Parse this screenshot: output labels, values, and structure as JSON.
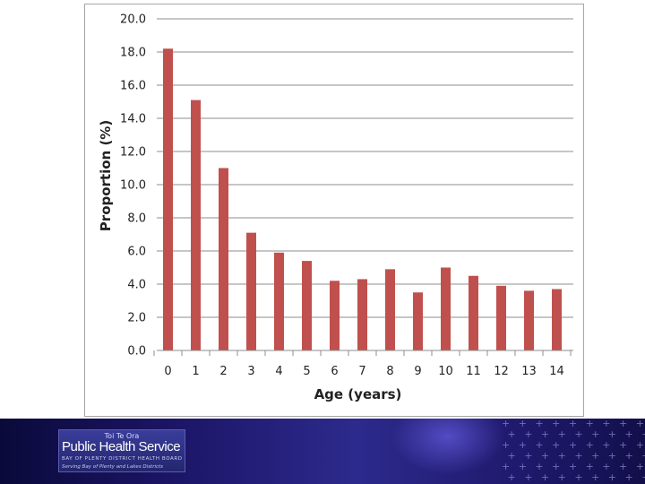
{
  "chart_data": {
    "type": "bar",
    "title": "",
    "xlabel": "Age (years)",
    "ylabel": "Proportion (%)",
    "categories": [
      "0",
      "1",
      "2",
      "3",
      "4",
      "5",
      "6",
      "7",
      "8",
      "9",
      "10",
      "11",
      "12",
      "13",
      "14"
    ],
    "values": [
      18.2,
      15.1,
      11.0,
      7.1,
      5.9,
      5.4,
      4.2,
      4.3,
      4.9,
      3.5,
      5.0,
      4.5,
      3.9,
      3.6,
      3.7
    ],
    "yticks": [
      "0.0",
      "2.0",
      "4.0",
      "6.0",
      "8.0",
      "10.0",
      "12.0",
      "14.0",
      "16.0",
      "18.0",
      "20.0"
    ],
    "ylim": [
      0,
      20
    ],
    "grid": true,
    "legend": "none",
    "bar_color": "#c0504d",
    "grid_color": "#8c8c8c"
  },
  "footer": {
    "logo_top": "Toi Te Ora",
    "logo_main": "Public Health Service",
    "logo_sub1": "BAY OF PLENTY DISTRICT HEALTH BOARD",
    "logo_sub2": "Serving Bay of Plenty and Lakes Districts"
  }
}
